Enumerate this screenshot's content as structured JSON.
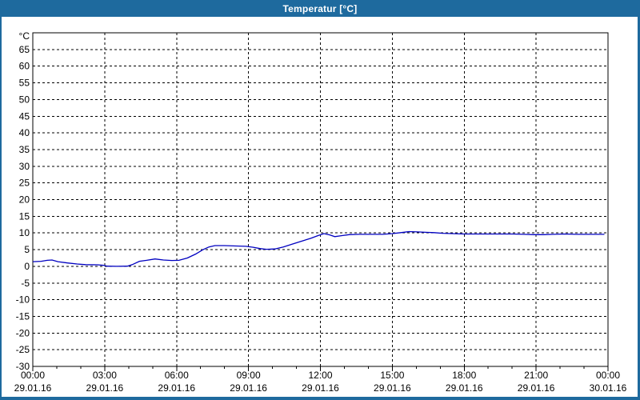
{
  "window": {
    "title": "Temperatur [°C]",
    "titlebar_color": "#1e6a9e",
    "border_color": "#1e6a9e",
    "content_background": "#ffffff",
    "title_text_color": "#ffffff"
  },
  "chart_data": {
    "type": "line",
    "title": "Temperatur [°C]",
    "ylabel": "°C",
    "ylim": [
      -30,
      70
    ],
    "yticks": [
      65,
      60,
      55,
      50,
      45,
      40,
      35,
      30,
      25,
      20,
      15,
      10,
      5,
      0,
      -5,
      -10,
      -15,
      -20,
      -25,
      -30
    ],
    "xlim_hours": [
      0,
      24
    ],
    "xticks": [
      {
        "hour": 0,
        "time": "00:00",
        "date": "29.01.16"
      },
      {
        "hour": 3,
        "time": "03:00",
        "date": "29.01.16"
      },
      {
        "hour": 6,
        "time": "06:00",
        "date": "29.01.16"
      },
      {
        "hour": 9,
        "time": "09:00",
        "date": "29.01.16"
      },
      {
        "hour": 12,
        "time": "12:00",
        "date": "29.01.16"
      },
      {
        "hour": 15,
        "time": "15:00",
        "date": "29.01.16"
      },
      {
        "hour": 18,
        "time": "18:00",
        "date": "29.01.16"
      },
      {
        "hour": 21,
        "time": "21:00",
        "date": "29.01.16"
      },
      {
        "hour": 24,
        "time": "00:00",
        "date": "30.01.16"
      }
    ],
    "minor_xtick_interval_hours": 1,
    "major_xtick_interval_hours": 3,
    "grid": "dashed",
    "grid_color": "#000000",
    "legend": "none",
    "series": [
      {
        "name": "Temperatur",
        "color": "#0000c0",
        "points": [
          [
            0.0,
            1.4
          ],
          [
            0.35,
            1.5
          ],
          [
            0.6,
            1.8
          ],
          [
            0.8,
            1.9
          ],
          [
            1.05,
            1.4
          ],
          [
            1.45,
            1.0
          ],
          [
            1.85,
            0.7
          ],
          [
            2.2,
            0.5
          ],
          [
            2.7,
            0.45
          ],
          [
            2.95,
            0.3
          ],
          [
            3.1,
            0.05
          ],
          [
            3.5,
            0.0
          ],
          [
            3.95,
            0.05
          ],
          [
            4.15,
            0.5
          ],
          [
            4.45,
            1.5
          ],
          [
            4.75,
            1.8
          ],
          [
            5.1,
            2.2
          ],
          [
            5.45,
            1.9
          ],
          [
            5.8,
            1.75
          ],
          [
            6.1,
            1.8
          ],
          [
            6.45,
            2.5
          ],
          [
            6.8,
            3.7
          ],
          [
            7.1,
            5.0
          ],
          [
            7.35,
            5.8
          ],
          [
            7.6,
            6.2
          ],
          [
            8.0,
            6.2
          ],
          [
            8.5,
            6.1
          ],
          [
            8.9,
            6.0
          ],
          [
            9.2,
            5.7
          ],
          [
            9.5,
            5.3
          ],
          [
            9.75,
            5.1
          ],
          [
            10.1,
            5.2
          ],
          [
            10.45,
            5.8
          ],
          [
            10.8,
            6.6
          ],
          [
            11.2,
            7.5
          ],
          [
            11.6,
            8.4
          ],
          [
            11.9,
            9.2
          ],
          [
            12.15,
            9.8
          ],
          [
            12.4,
            9.4
          ],
          [
            12.6,
            8.9
          ],
          [
            12.9,
            9.2
          ],
          [
            13.2,
            9.5
          ],
          [
            13.6,
            9.6
          ],
          [
            14.1,
            9.6
          ],
          [
            14.6,
            9.6
          ],
          [
            15.0,
            9.8
          ],
          [
            15.35,
            10.1
          ],
          [
            15.7,
            10.4
          ],
          [
            16.05,
            10.3
          ],
          [
            16.4,
            10.2
          ],
          [
            16.75,
            10.1
          ],
          [
            17.1,
            9.9
          ],
          [
            17.5,
            9.8
          ],
          [
            18.0,
            9.7
          ],
          [
            18.5,
            9.7
          ],
          [
            19.0,
            9.7
          ],
          [
            19.5,
            9.7
          ],
          [
            20.0,
            9.7
          ],
          [
            20.5,
            9.6
          ],
          [
            20.9,
            9.5
          ],
          [
            21.3,
            9.5
          ],
          [
            21.7,
            9.6
          ],
          [
            22.2,
            9.7
          ],
          [
            22.7,
            9.6
          ],
          [
            23.2,
            9.6
          ],
          [
            23.85,
            9.6
          ]
        ]
      }
    ]
  }
}
